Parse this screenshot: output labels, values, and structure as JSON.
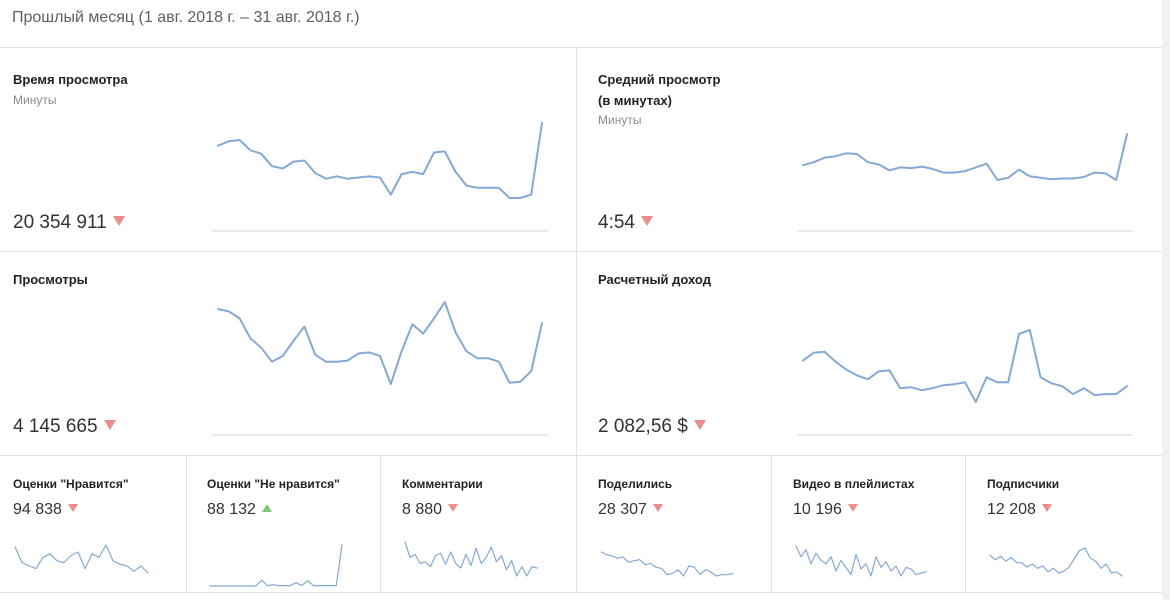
{
  "header": {
    "title": "Прошлый месяц (1 авг. 2018 г. – 31 авг. 2018 г.)"
  },
  "cards": [
    {
      "title": "Время просмотра",
      "subtitle": "Минуты",
      "value": "20 354 911",
      "trend": "down",
      "series": [
        80,
        84,
        85,
        76,
        73,
        62,
        60,
        66,
        67,
        56,
        51,
        53,
        51,
        52,
        53,
        52,
        37,
        55,
        57,
        55,
        74,
        75,
        57,
        45,
        43,
        43,
        43,
        34,
        34,
        37,
        100
      ]
    },
    {
      "title": "Средний просмотр\n(в минутах)",
      "subtitle": "Минуты",
      "value": "4:54",
      "trend": "down",
      "series": [
        58,
        62,
        68,
        70,
        74,
        73,
        62,
        59,
        51,
        55,
        54,
        56,
        53,
        48,
        48,
        50,
        55,
        60,
        38,
        41,
        52,
        43,
        41,
        39,
        40,
        40,
        42,
        48,
        47,
        38,
        100
      ]
    },
    {
      "title": "Просмотры",
      "subtitle": "",
      "value": "4 145 665",
      "trend": "down",
      "series": [
        87,
        85,
        79,
        62,
        54,
        42,
        47,
        60,
        72,
        48,
        42,
        42,
        43,
        49,
        50,
        47,
        23,
        51,
        74,
        66,
        79,
        93,
        67,
        51,
        45,
        45,
        42,
        24,
        25,
        34,
        75
      ]
    },
    {
      "title": "Расчетный доход",
      "subtitle": "",
      "value": "2 082,56 $",
      "trend": "down",
      "series": [
        67,
        75,
        76,
        66,
        58,
        52,
        48,
        56,
        57,
        39,
        40,
        37,
        39,
        42,
        43,
        45,
        25,
        50,
        45,
        45,
        94,
        98,
        50,
        44,
        41,
        33,
        39,
        32,
        33,
        33,
        41
      ]
    },
    {
      "title": "Оценки \"Нравится\"",
      "value": "94 838",
      "trend": "down",
      "series": [
        60,
        42,
        38,
        35,
        48,
        52,
        44,
        42,
        50,
        54,
        35,
        52,
        48,
        62,
        44,
        40,
        38,
        32,
        38,
        30
      ]
    },
    {
      "title": "Оценки \"Не нравится\"",
      "value": "88 132",
      "trend": "up",
      "series": [
        2,
        2,
        2,
        2,
        2,
        2,
        2,
        2,
        2,
        16,
        3,
        5,
        3,
        3,
        3,
        10,
        3,
        15,
        3,
        3,
        3,
        3,
        3,
        100
      ]
    },
    {
      "title": "Комментарии",
      "value": "8 880",
      "trend": "down",
      "series": [
        80,
        55,
        60,
        45,
        48,
        40,
        58,
        62,
        44,
        64,
        45,
        38,
        60,
        42,
        70,
        45,
        55,
        72,
        48,
        58,
        35,
        50,
        25,
        40,
        25,
        40,
        38
      ]
    },
    {
      "title": "Поделились",
      "value": "28 307",
      "trend": "down",
      "series": [
        48,
        46,
        45,
        43,
        44,
        40,
        41,
        42,
        38,
        39,
        36,
        35,
        30,
        31,
        34,
        29,
        37,
        36,
        30,
        34,
        32,
        29,
        30,
        30,
        31
      ]
    },
    {
      "title": "Видео в плейлистах",
      "value": "10 196",
      "trend": "down",
      "series": [
        70,
        55,
        65,
        45,
        60,
        50,
        45,
        55,
        35,
        50,
        40,
        30,
        58,
        38,
        45,
        28,
        55,
        40,
        48,
        35,
        42,
        28,
        40,
        38,
        30,
        32,
        34
      ]
    },
    {
      "title": "Подписчики",
      "value": "12 208",
      "trend": "down",
      "series": [
        60,
        52,
        58,
        50,
        56,
        48,
        47,
        40,
        45,
        38,
        42,
        32,
        38,
        30,
        33,
        40,
        55,
        68,
        72,
        55,
        50,
        38,
        45,
        30,
        32,
        25
      ]
    }
  ]
}
